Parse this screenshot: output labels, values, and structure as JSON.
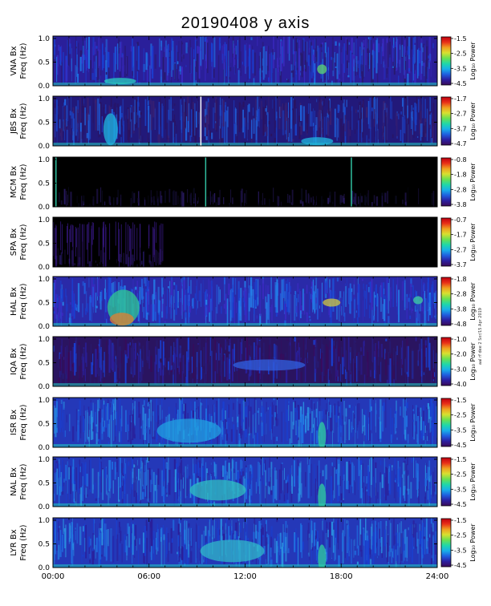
{
  "title": "20190408 y axis",
  "side_note": "aal rf dee 2 Sxr/15 Apr 2019",
  "colorbar_colors": [
    "#3a0a5a",
    "#2c1fa0",
    "#1f5fe0",
    "#18b0e8",
    "#20d8a8",
    "#6ae050",
    "#d8e030",
    "#f0a020",
    "#e83018",
    "#c00010"
  ],
  "chart_data": {
    "type": "heatmap",
    "x_tick_labels": [
      "00:00",
      "06:00",
      "12:00",
      "18:00",
      "24:00"
    ],
    "x_ticks_hours": [
      0,
      6,
      12,
      18,
      24
    ],
    "xlim_hours": [
      0,
      24
    ],
    "y_tick_labels": [
      "0.0",
      "0.5",
      "1.0"
    ],
    "ylim": [
      0,
      1.05
    ],
    "colorbar_label": "Log₁₀ Power",
    "panels": [
      {
        "station": "VNA Bx",
        "ylabel": "Freq (Hz)",
        "cbar_ticks": [
          "-1.5",
          "-2.5",
          "-3.5",
          "-4.5"
        ],
        "cbar_range": [
          -4.5,
          -1.5
        ]
      },
      {
        "station": "JBS Bx",
        "ylabel": "Freq (Hz)",
        "cbar_ticks": [
          "-1.7",
          "-2.7",
          "-3.7",
          "-4.7"
        ],
        "cbar_range": [
          -4.7,
          -1.7
        ]
      },
      {
        "station": "MCM Bx",
        "ylabel": "Freq (Hz)",
        "cbar_ticks": [
          "-0.8",
          "-1.8",
          "-2.8",
          "-3.8"
        ],
        "cbar_range": [
          -3.8,
          -0.8
        ]
      },
      {
        "station": "SPA Bx",
        "ylabel": "Freq (Hz)",
        "cbar_ticks": [
          "-0.7",
          "-1.7",
          "-2.7",
          "-3.7"
        ],
        "cbar_range": [
          -3.7,
          -0.7
        ]
      },
      {
        "station": "HAL Bx",
        "ylabel": "Freq (Hz)",
        "cbar_ticks": [
          "-1.8",
          "-2.8",
          "-3.8",
          "-4.8"
        ],
        "cbar_range": [
          -4.8,
          -1.8
        ]
      },
      {
        "station": "IQA Bx",
        "ylabel": "Freq (Hz)",
        "cbar_ticks": [
          "-1.0",
          "-2.0",
          "-3.0",
          "-4.0"
        ],
        "cbar_range": [
          -4.0,
          -1.0
        ]
      },
      {
        "station": "ISR Bx",
        "ylabel": "Freq (Hz)",
        "cbar_ticks": [
          "-1.5",
          "-2.5",
          "-3.5",
          "-4.5"
        ],
        "cbar_range": [
          -4.5,
          -1.5
        ]
      },
      {
        "station": "NAL Bx",
        "ylabel": "Freq (Hz)",
        "cbar_ticks": [
          "-1.5",
          "-2.5",
          "-3.5",
          "-4.5"
        ],
        "cbar_range": [
          -4.5,
          -1.5
        ]
      },
      {
        "station": "LYR Bx",
        "ylabel": "Freq (Hz)",
        "cbar_ticks": [
          "-1.5",
          "-2.5",
          "-3.5",
          "-4.5"
        ],
        "cbar_range": [
          -4.5,
          -1.5
        ]
      }
    ]
  }
}
